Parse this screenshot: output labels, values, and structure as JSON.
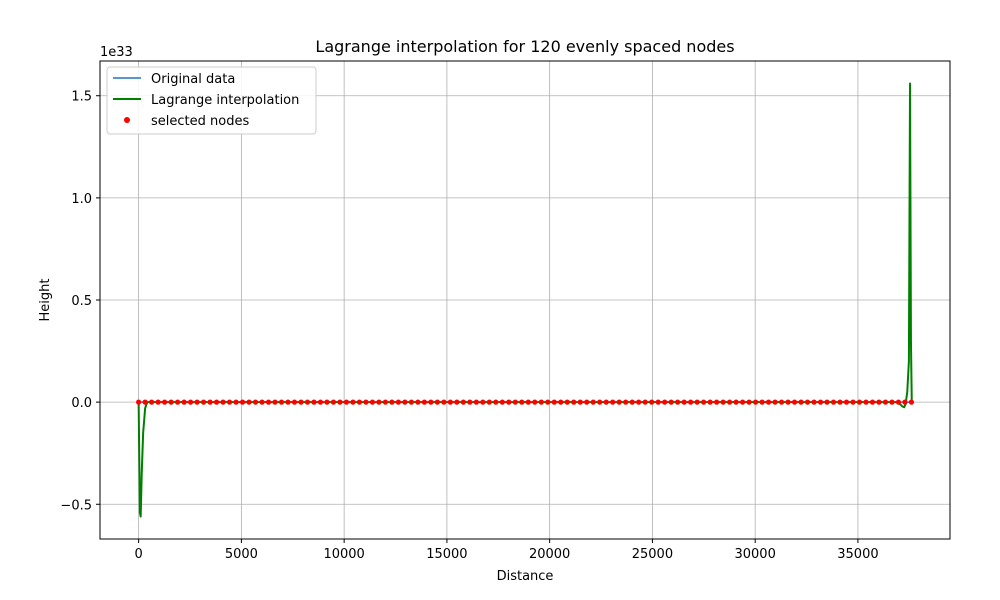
{
  "chart_data": {
    "type": "line",
    "title": "Lagrange interpolation for 120 evenly spaced nodes",
    "xlabel": "Distance",
    "ylabel": "Height",
    "offset_label": "1e33",
    "xlim": [
      -1880,
      39480
    ],
    "ylim": [
      -0.67,
      1.67
    ],
    "y_scale_factor": 1e+33,
    "xticks": [
      0,
      5000,
      10000,
      15000,
      20000,
      25000,
      30000,
      35000
    ],
    "yticks": [
      -0.5,
      0.0,
      0.5,
      1.0,
      1.5
    ],
    "ytick_labels": [
      "−0.5",
      "0.0",
      "0.5",
      "1.0",
      "1.5"
    ],
    "grid": true,
    "legend_position": "upper-left",
    "colors": {
      "original": "#1f77b4",
      "lagrange": "#008000",
      "nodes": "#ff0000",
      "grid": "#b0b0b0"
    },
    "series": [
      {
        "name": "Original data",
        "style": "line",
        "x": [
          0,
          37600
        ],
        "y": [
          0.0,
          0.0
        ]
      },
      {
        "name": "Lagrange interpolation",
        "style": "line",
        "x": [
          0,
          60,
          100,
          150,
          220,
          316,
          420,
          600,
          800,
          1000,
          2000,
          5000,
          10000,
          20000,
          30000,
          35000,
          36500,
          36900,
          37050,
          37150,
          37250,
          37320,
          37400,
          37480,
          37535,
          37580,
          37620
        ],
        "y": [
          0.0,
          -0.54,
          -0.56,
          -0.35,
          -0.15,
          -0.03,
          0.0,
          0.0,
          0.0,
          0.0,
          0.0,
          0.0,
          0.0,
          0.0,
          0.0,
          0.0,
          0.0,
          0.0,
          -0.01,
          -0.02,
          -0.025,
          -0.01,
          0.05,
          0.2,
          1.56,
          0.3,
          0.0
        ]
      },
      {
        "name": "selected nodes",
        "style": "scatter",
        "x_start": 0,
        "x_step": 316,
        "count": 120,
        "y_value": 0.0
      }
    ]
  }
}
